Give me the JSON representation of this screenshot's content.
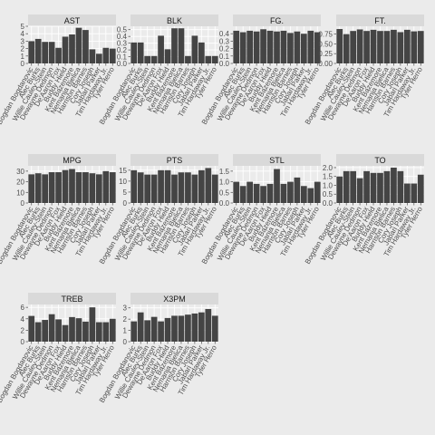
{
  "chart_data": {
    "type": "bar",
    "facet": "wrap",
    "columns": 4,
    "color_bar": "#444444",
    "color_panel": "#ebebeb",
    "color_grid": "#ffffff",
    "categories": [
      "Bogdan Bogdanovic",
      "Alec Burks",
      "Willie Cauley-Stein",
      "Dewayne Dedmon",
      "De'Aaron Fox",
      "Buddy Hield",
      "Kent Bazemore",
      "Nemanja Bjelica",
      "Harrison Barnes",
      "Cory Joseph",
      "Jabari Parker",
      "Tim Hardaway Jr.",
      "Tyler Herro"
    ],
    "panels": [
      {
        "title": "AST",
        "ylim": [
          0,
          5
        ],
        "yticks": [
          "0",
          "1",
          "2",
          "3",
          "4",
          "5"
        ],
        "values": [
          3.0,
          3.3,
          2.9,
          2.9,
          2.1,
          3.6,
          3.9,
          4.8,
          4.5,
          1.9,
          1.3,
          2.1,
          2.0
        ]
      },
      {
        "title": "BLK",
        "ylim": [
          0,
          0.55
        ],
        "yticks": [
          "0.0",
          "0.1",
          "0.2",
          "0.3",
          "0.4",
          "0.5"
        ],
        "values": [
          0.31,
          0.31,
          0.11,
          0.11,
          0.41,
          0.21,
          0.52,
          0.52,
          0.11,
          0.41,
          0.31,
          0.11,
          0.11
        ]
      },
      {
        "title": "FG.",
        "ylim": [
          0,
          0.5
        ],
        "yticks": [
          "0.0",
          "0.1",
          "0.2",
          "0.3",
          "0.4"
        ],
        "values": [
          0.44,
          0.42,
          0.44,
          0.43,
          0.46,
          0.44,
          0.43,
          0.44,
          0.41,
          0.43,
          0.4,
          0.44,
          0.42
        ]
      },
      {
        "title": "FT.",
        "ylim": [
          0,
          0.95
        ],
        "yticks": [
          "0.00",
          "0.25",
          "0.50",
          "0.75"
        ],
        "values": [
          0.88,
          0.75,
          0.83,
          0.87,
          0.83,
          0.86,
          0.83,
          0.83,
          0.86,
          0.8,
          0.86,
          0.82,
          0.83
        ]
      },
      {
        "title": "MPG",
        "ylim": [
          0,
          35
        ],
        "yticks": [
          "0",
          "10",
          "20",
          "30"
        ],
        "values": [
          27,
          28,
          27,
          29,
          29,
          31,
          32,
          29,
          29,
          28,
          27,
          30,
          29
        ]
      },
      {
        "title": "PTS",
        "ylim": [
          0,
          17
        ],
        "yticks": [
          "0",
          "5",
          "10",
          "15"
        ],
        "values": [
          15,
          14,
          13,
          13,
          15,
          15,
          13,
          14,
          14,
          13,
          15,
          16,
          13
        ]
      },
      {
        "title": "STL",
        "ylim": [
          0,
          1.75
        ],
        "yticks": [
          "0.0",
          "0.5",
          "1.0",
          "1.5"
        ],
        "values": [
          1.0,
          0.8,
          1.0,
          0.9,
          0.8,
          0.9,
          1.6,
          0.9,
          1.0,
          1.2,
          0.8,
          0.7,
          1.0
        ]
      },
      {
        "title": "TO",
        "ylim": [
          0,
          2.1
        ],
        "yticks": [
          "0.0",
          "0.5",
          "1.0",
          "1.5",
          "2.0"
        ],
        "values": [
          1.5,
          1.8,
          1.8,
          1.4,
          1.8,
          1.7,
          1.7,
          1.8,
          2.0,
          1.8,
          1.1,
          1.1,
          1.6
        ]
      },
      {
        "title": "TREB",
        "ylim": [
          0,
          6.5
        ],
        "yticks": [
          "0",
          "2",
          "4",
          "6"
        ],
        "values": [
          4.5,
          3.4,
          3.8,
          4.8,
          3.9,
          2.9,
          4.3,
          4.1,
          3.5,
          6.0,
          3.4,
          3.4,
          4.0
        ]
      },
      {
        "title": "X3PM",
        "ylim": [
          0,
          3.3
        ],
        "yticks": [
          "0",
          "1",
          "2",
          "3"
        ],
        "values": [
          1.8,
          2.6,
          1.9,
          2.2,
          1.8,
          2.1,
          2.3,
          2.3,
          2.4,
          2.5,
          2.6,
          2.9,
          2.3
        ]
      }
    ]
  }
}
